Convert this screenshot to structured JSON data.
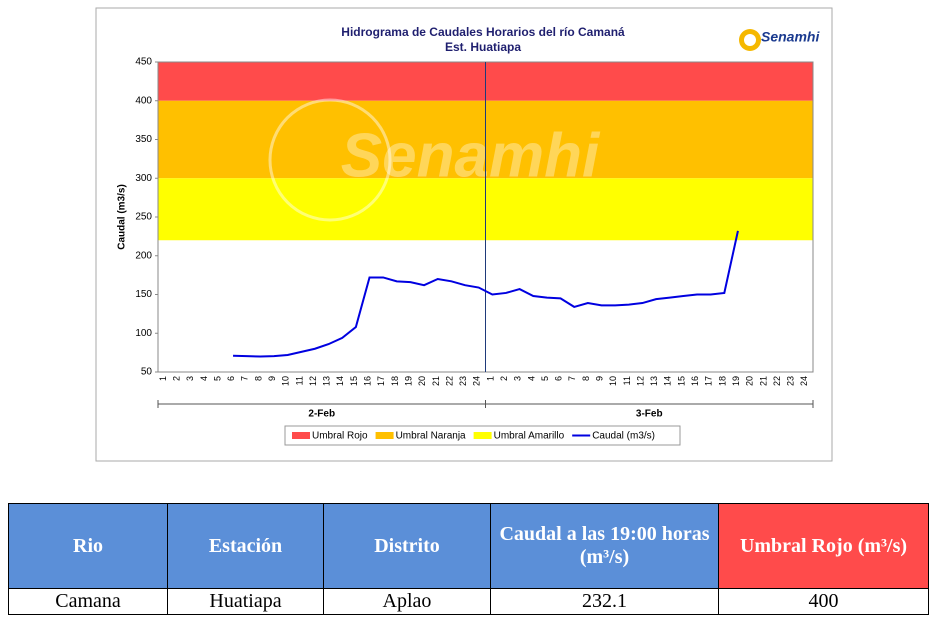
{
  "chart_data": {
    "type": "line",
    "title": "Hidrograma de Caudales Horarios del río Camaná",
    "subtitle": "Est. Huatiapa",
    "logo": "Senamhi",
    "y_label": "Caudal  (m3/s)",
    "categories": [
      "1",
      "2",
      "3",
      "4",
      "5",
      "6",
      "7",
      "8",
      "9",
      "10",
      "11",
      "12",
      "13",
      "14",
      "15",
      "16",
      "17",
      "18",
      "19",
      "20",
      "21",
      "22",
      "23",
      "24",
      "1",
      "2",
      "3",
      "4",
      "5",
      "6",
      "7",
      "8",
      "9",
      "10",
      "11",
      "12",
      "13",
      "14",
      "15",
      "16",
      "17",
      "18",
      "19",
      "20",
      "21",
      "22",
      "23",
      "24"
    ],
    "groups": [
      "2-Feb",
      "3-Feb"
    ],
    "bands": [
      {
        "name": "Umbral Rojo",
        "color": "#ff4b4b",
        "from": 400,
        "to": 450
      },
      {
        "name": "Umbral Naranja",
        "color": "#ffc000",
        "from": 300,
        "to": 400
      },
      {
        "name": "Umbral Amarillo",
        "color": "#ffff00",
        "from": 220,
        "to": 300
      }
    ],
    "series": [
      {
        "name": "Caudal (m3/s)",
        "color": "#0000e0",
        "values": [
          null,
          null,
          null,
          null,
          null,
          71,
          70.5,
          70,
          70.5,
          72,
          76,
          80,
          86,
          94,
          108,
          172,
          172,
          167,
          166,
          162,
          170,
          167,
          162,
          159,
          150,
          152,
          157,
          148,
          146,
          145,
          134,
          139,
          136,
          136,
          137,
          139,
          144,
          146,
          148,
          150,
          150,
          152,
          232.1,
          null,
          null,
          null,
          null,
          null
        ]
      }
    ],
    "ylim": [
      50,
      450
    ],
    "yticks": [
      50,
      100,
      150,
      200,
      250,
      300,
      350,
      400,
      450
    ]
  },
  "table": {
    "header": [
      "Rio",
      "Estación",
      "Distrito",
      "Caudal a las 19:00 horas (m³/s)",
      "Umbral Rojo (m³/s)"
    ],
    "rows": [
      [
        "Camana",
        "Huatiapa",
        "Aplao",
        "232.1",
        "400"
      ]
    ]
  }
}
